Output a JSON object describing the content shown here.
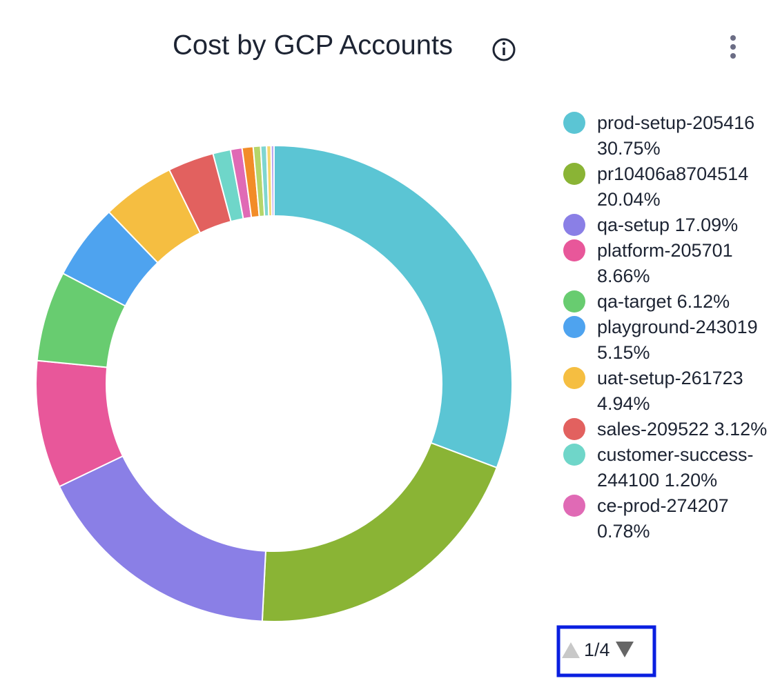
{
  "chart_data": {
    "type": "donut",
    "title": "Cost by GCP Accounts",
    "categories": [
      "prod-setup-205416",
      "pr10406a8704514",
      "qa-setup",
      "platform-205701",
      "qa-target",
      "playground-243019",
      "uat-setup-261723",
      "sales-209522",
      "customer-success-244100",
      "ce-prod-274207",
      null,
      null,
      null,
      null,
      null
    ],
    "values": [
      30.75,
      20.04,
      17.09,
      8.66,
      6.12,
      5.15,
      4.94,
      3.12,
      1.2,
      0.78,
      0.75,
      0.5,
      0.4,
      0.3,
      0.2
    ],
    "value_labels": [
      "30.75%",
      "20.04%",
      "17.09%",
      "8.66%",
      "6.12%",
      "5.15%",
      "4.94%",
      "3.12%",
      "1.20%",
      "0.78%",
      null,
      null,
      null,
      null,
      null
    ],
    "colors": [
      "#5bc5d4",
      "#8ab435",
      "#8a7fe6",
      "#e8579a",
      "#68cc70",
      "#4ea3ef",
      "#f5be41",
      "#e2615f",
      "#6fd6c9",
      "#e06ab5",
      "#f28c28",
      "#b5d56a",
      "#7fd6d0",
      "#f5d76e",
      "#b9a8f0"
    ],
    "legend_page": "1/4"
  }
}
